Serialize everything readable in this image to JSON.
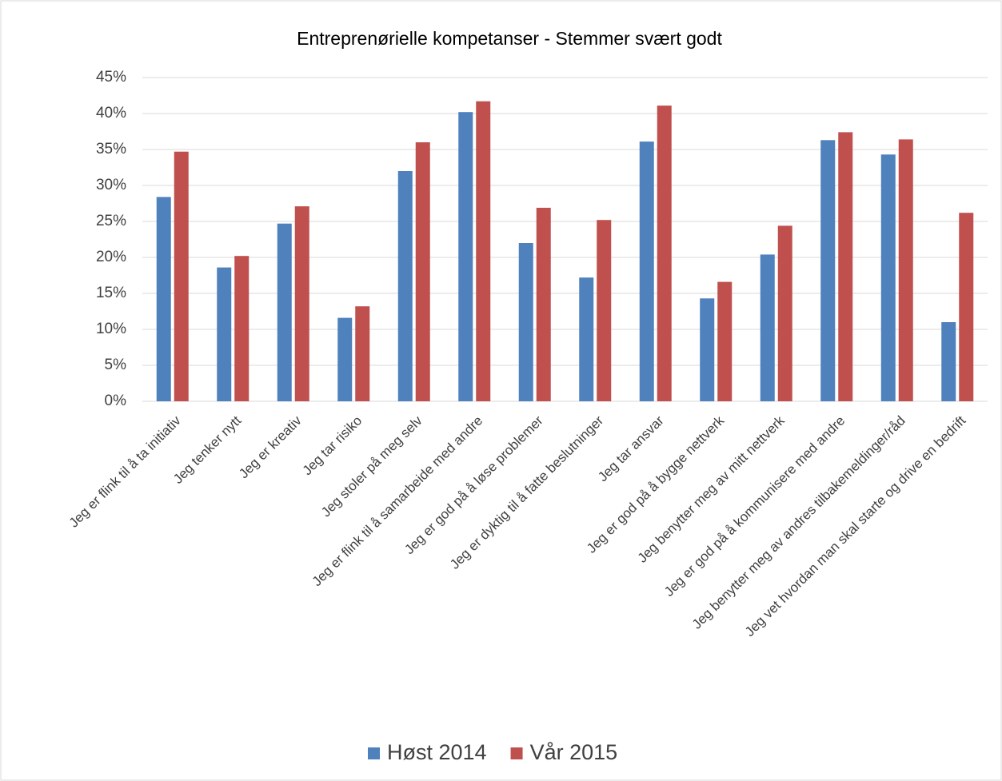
{
  "chart_data": {
    "type": "bar",
    "title": "Entreprenørielle kompetanser - Stemmer svært godt",
    "categories": [
      "Jeg er flink til å ta initiativ",
      "Jeg tenker nytt",
      "Jeg er kreativ",
      "Jeg tar risiko",
      "Jeg stoler på meg selv",
      "Jeg er flink til å samarbeide med andre",
      "Jeg er god på å løse problemer",
      "Jeg er dyktig til å fatte beslutninger",
      "Jeg tar ansvar",
      "Jeg er god på å bygge nettverk",
      "Jeg benytter meg av mitt nettverk",
      "Jeg er god på å kommunisere med andre",
      "Jeg benytter meg av andres tilbakemeldinger/råd",
      "Jeg vet hvordan man skal starte og drive en bedrift"
    ],
    "series": [
      {
        "name": "Høst 2014",
        "color": "#4f81bd",
        "values": [
          28.4,
          18.6,
          24.7,
          11.6,
          32,
          40.2,
          22,
          17.2,
          36.1,
          14.3,
          20.4,
          36.3,
          34.3,
          11
        ]
      },
      {
        "name": "Vår 2015",
        "color": "#c0504d",
        "values": [
          34.7,
          20.2,
          27.1,
          13.2,
          36,
          41.7,
          26.9,
          25.2,
          41.1,
          16.6,
          24.4,
          37.4,
          36.4,
          26.2
        ]
      }
    ],
    "ylim": [
      0,
      45
    ],
    "yticks": [
      {
        "value": 0,
        "label": "0%"
      },
      {
        "value": 5,
        "label": "5%"
      },
      {
        "value": 10,
        "label": "10%"
      },
      {
        "value": 15,
        "label": "15%"
      },
      {
        "value": 20,
        "label": "20%"
      },
      {
        "value": 25,
        "label": "25%"
      },
      {
        "value": 30,
        "label": "30%"
      },
      {
        "value": 35,
        "label": "35%"
      },
      {
        "value": 40,
        "label": "40%"
      },
      {
        "value": 45,
        "label": "45%"
      }
    ],
    "grid": true,
    "legend": "bottom"
  }
}
